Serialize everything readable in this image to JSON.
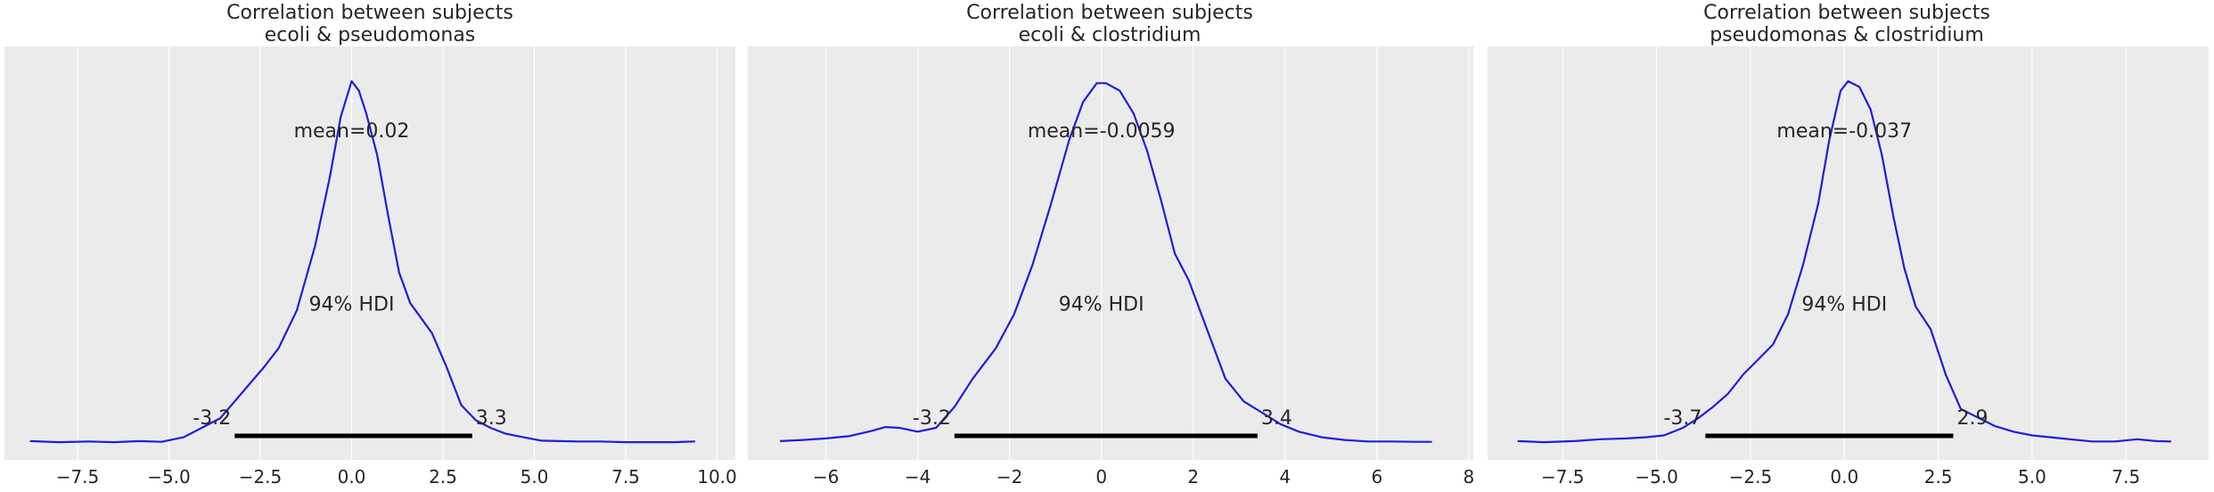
{
  "chart_data": [
    {
      "type": "line",
      "title": "Correlation between subjects",
      "subtitle": "ecoli & pseudomonas",
      "line_color": "#1f1fd6",
      "xlim": [
        -9.5,
        10.5
      ],
      "xticks": [
        -7.5,
        -5.0,
        -2.5,
        0.0,
        2.5,
        5.0,
        7.5,
        10.0
      ],
      "xtick_labels": [
        "−7.5",
        "−5.0",
        "−2.5",
        "0.0",
        "2.5",
        "5.0",
        "7.5",
        "10.0"
      ],
      "mean_label": "mean=0.02",
      "mean_pos": [
        0.0,
        0.807
      ],
      "hdi_label": "94% HDI",
      "hdi_label_pos": [
        0.0,
        0.35
      ],
      "hdi": [
        -3.2,
        3.3
      ],
      "hdi_low_label": "-3.2",
      "hdi_high_label": "3.3",
      "x": [
        -8.8,
        -8.0,
        -7.2,
        -6.5,
        -5.8,
        -5.2,
        -4.6,
        -4.1,
        -3.6,
        -3.2,
        -2.8,
        -2.4,
        -2.0,
        -1.5,
        -1.0,
        -0.6,
        -0.3,
        0.0,
        0.2,
        0.4,
        0.7,
        1.0,
        1.3,
        1.6,
        1.9,
        2.2,
        2.6,
        3.0,
        3.4,
        3.8,
        4.2,
        4.7,
        5.2,
        5.7,
        6.2,
        6.8,
        7.5,
        8.2,
        8.8,
        9.4
      ],
      "y": [
        0.005,
        0.002,
        0.004,
        0.002,
        0.005,
        0.003,
        0.015,
        0.04,
        0.065,
        0.11,
        0.155,
        0.2,
        0.25,
        0.35,
        0.52,
        0.7,
        0.86,
        0.955,
        0.93,
        0.87,
        0.76,
        0.6,
        0.45,
        0.37,
        0.33,
        0.29,
        0.2,
        0.1,
        0.06,
        0.04,
        0.025,
        0.015,
        0.006,
        0.005,
        0.004,
        0.004,
        0.002,
        0.002,
        0.002,
        0.004
      ]
    },
    {
      "type": "line",
      "title": "Correlation between subjects",
      "subtitle": "ecoli & clostridium",
      "line_color": "#1f1fd6",
      "xlim": [
        -7.7,
        8.1
      ],
      "xticks": [
        -6,
        -4,
        -2,
        0,
        2,
        4,
        6,
        8
      ],
      "xtick_labels": [
        "−6",
        "−4",
        "−2",
        "0",
        "2",
        "4",
        "6",
        "8"
      ],
      "mean_label": "mean=-0.0059",
      "mean_pos": [
        0.0,
        0.807
      ],
      "hdi_label": "94% HDI",
      "hdi_label_pos": [
        0.0,
        0.35
      ],
      "hdi": [
        -3.2,
        3.4
      ],
      "hdi_low_label": "-3.2",
      "hdi_high_label": "3.4",
      "x": [
        -7.0,
        -6.5,
        -6.0,
        -5.5,
        -5.0,
        -4.7,
        -4.4,
        -4.0,
        -3.6,
        -3.2,
        -2.8,
        -2.3,
        -1.9,
        -1.5,
        -1.1,
        -0.7,
        -0.4,
        -0.1,
        0.1,
        0.4,
        0.7,
        1.0,
        1.3,
        1.6,
        1.9,
        2.3,
        2.7,
        3.1,
        3.5,
        3.9,
        4.3,
        4.8,
        5.3,
        5.8,
        6.3,
        6.8,
        7.2
      ],
      "y": [
        0.005,
        0.008,
        0.012,
        0.018,
        0.032,
        0.042,
        0.04,
        0.03,
        0.04,
        0.095,
        0.17,
        0.25,
        0.34,
        0.47,
        0.63,
        0.8,
        0.9,
        0.95,
        0.95,
        0.93,
        0.87,
        0.77,
        0.64,
        0.5,
        0.43,
        0.3,
        0.17,
        0.11,
        0.08,
        0.05,
        0.03,
        0.015,
        0.008,
        0.004,
        0.004,
        0.003,
        0.003
      ]
    },
    {
      "type": "line",
      "title": "Correlation between subjects",
      "subtitle": "pseudomonas & clostridium",
      "line_color": "#1f1fd6",
      "xlim": [
        -9.5,
        9.7
      ],
      "xticks": [
        -7.5,
        -5.0,
        -2.5,
        0.0,
        2.5,
        5.0,
        7.5
      ],
      "xtick_labels": [
        "−7.5",
        "−5.0",
        "−2.5",
        "0.0",
        "2.5",
        "5.0",
        "7.5"
      ],
      "mean_label": "mean=-0.037",
      "mean_pos": [
        0.0,
        0.807
      ],
      "hdi_label": "94% HDI",
      "hdi_label_pos": [
        0.0,
        0.35
      ],
      "hdi": [
        -3.7,
        2.9
      ],
      "hdi_low_label": "-3.7",
      "hdi_high_label": "2.9",
      "x": [
        -8.7,
        -8.0,
        -7.2,
        -6.5,
        -5.8,
        -5.3,
        -4.8,
        -4.3,
        -3.9,
        -3.5,
        -3.1,
        -2.7,
        -2.3,
        -1.9,
        -1.5,
        -1.1,
        -0.7,
        -0.4,
        -0.1,
        0.1,
        0.4,
        0.7,
        1.0,
        1.3,
        1.6,
        1.9,
        2.3,
        2.7,
        3.1,
        3.5,
        4.0,
        4.5,
        5.0,
        5.5,
        6.0,
        6.6,
        7.2,
        7.8,
        8.3,
        8.7
      ],
      "y": [
        0.005,
        0.002,
        0.005,
        0.01,
        0.012,
        0.015,
        0.02,
        0.04,
        0.065,
        0.095,
        0.13,
        0.18,
        0.22,
        0.26,
        0.34,
        0.47,
        0.63,
        0.8,
        0.93,
        0.955,
        0.94,
        0.88,
        0.76,
        0.6,
        0.46,
        0.36,
        0.3,
        0.18,
        0.09,
        0.07,
        0.045,
        0.03,
        0.02,
        0.015,
        0.01,
        0.004,
        0.004,
        0.01,
        0.005,
        0.004
      ]
    }
  ]
}
